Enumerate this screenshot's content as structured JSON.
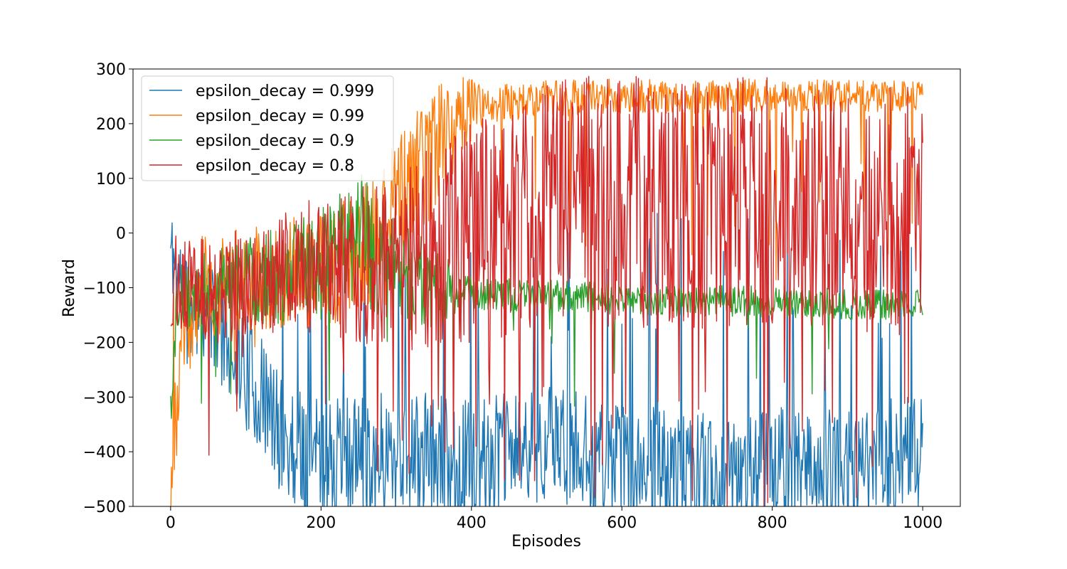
{
  "chart_data": {
    "type": "line",
    "title": "",
    "xlabel": "Episodes",
    "ylabel": "Reward",
    "xlim": [
      -50,
      1050
    ],
    "ylim": [
      -500,
      300
    ],
    "xticks": [
      0,
      200,
      400,
      600,
      800,
      1000
    ],
    "yticks": [
      -500,
      -400,
      -300,
      -200,
      -100,
      0,
      100,
      200,
      300
    ],
    "xtick_labels": [
      "0",
      "200",
      "400",
      "600",
      "800",
      "1000"
    ],
    "ytick_labels": [
      "−500",
      "−400",
      "−300",
      "−200",
      "−100",
      "0",
      "100",
      "200",
      "300"
    ],
    "grid": false,
    "legend_position": "upper-left",
    "x": {
      "start": 0,
      "end": 1000,
      "count": 1001
    },
    "series": [
      {
        "name": "epsilon_decay = 0.999",
        "color": "#1f77b4",
        "keyframes": [
          [
            0,
            -30
          ],
          [
            30,
            -150
          ],
          [
            60,
            -160
          ],
          [
            100,
            -250
          ],
          [
            150,
            -380
          ],
          [
            200,
            -420
          ],
          [
            300,
            -400
          ],
          [
            400,
            -420
          ],
          [
            500,
            -380
          ],
          [
            600,
            -420
          ],
          [
            700,
            -440
          ],
          [
            800,
            -420
          ],
          [
            900,
            -430
          ],
          [
            1000,
            -400
          ]
        ],
        "noise": [
          [
            0,
            80
          ],
          [
            100,
            110
          ],
          [
            200,
            120
          ],
          [
            500,
            110
          ],
          [
            1000,
            110
          ]
        ],
        "spike_rate": [
          [
            0,
            0.03
          ],
          [
            500,
            0.04
          ],
          [
            600,
            0.05
          ],
          [
            1000,
            0.06
          ]
        ],
        "spike_level": [
          [
            0,
            -140
          ],
          [
            300,
            -100
          ],
          [
            600,
            -60
          ],
          [
            1000,
            -120
          ]
        ],
        "seed": 11
      },
      {
        "name": "epsilon_decay = 0.99",
        "color": "#ff7f0e",
        "keyframes": [
          [
            0,
            -470
          ],
          [
            15,
            -200
          ],
          [
            40,
            -100
          ],
          [
            100,
            -80
          ],
          [
            200,
            -70
          ],
          [
            250,
            -40
          ],
          [
            300,
            50
          ],
          [
            350,
            150
          ],
          [
            400,
            230
          ],
          [
            450,
            240
          ],
          [
            500,
            245
          ],
          [
            600,
            250
          ],
          [
            700,
            250
          ],
          [
            800,
            252
          ],
          [
            900,
            250
          ],
          [
            1000,
            250
          ]
        ],
        "noise": [
          [
            0,
            90
          ],
          [
            200,
            110
          ],
          [
            350,
            120
          ],
          [
            420,
            35
          ],
          [
            1000,
            28
          ]
        ],
        "spike_rate": [
          [
            0,
            0.02
          ],
          [
            1000,
            0.02
          ]
        ],
        "spike_level": [
          [
            0,
            -160
          ],
          [
            1000,
            80
          ]
        ],
        "seed": 23
      },
      {
        "name": "epsilon_decay = 0.9",
        "color": "#2ca02c",
        "keyframes": [
          [
            0,
            -300
          ],
          [
            10,
            -120
          ],
          [
            50,
            -100
          ],
          [
            100,
            -90
          ],
          [
            200,
            -60
          ],
          [
            250,
            0
          ],
          [
            300,
            -80
          ],
          [
            350,
            -100
          ],
          [
            400,
            -110
          ],
          [
            500,
            -115
          ],
          [
            600,
            -120
          ],
          [
            700,
            -125
          ],
          [
            800,
            -125
          ],
          [
            900,
            -130
          ],
          [
            1000,
            -130
          ]
        ],
        "noise": [
          [
            0,
            60
          ],
          [
            150,
            90
          ],
          [
            250,
            120
          ],
          [
            330,
            90
          ],
          [
            400,
            30
          ],
          [
            1000,
            28
          ]
        ],
        "spike_rate": [
          [
            0,
            0.02
          ],
          [
            1000,
            0.03
          ]
        ],
        "spike_level": [
          [
            0,
            -200
          ],
          [
            1000,
            -220
          ]
        ],
        "seed": 37
      },
      {
        "name": "epsilon_decay = 0.8",
        "color": "#d62728",
        "keyframes": [
          [
            0,
            -90
          ],
          [
            50,
            -110
          ],
          [
            100,
            -90
          ],
          [
            150,
            -70
          ],
          [
            200,
            -60
          ],
          [
            300,
            -50
          ],
          [
            400,
            0
          ],
          [
            500,
            50
          ],
          [
            600,
            60
          ],
          [
            700,
            50
          ],
          [
            800,
            60
          ],
          [
            900,
            60
          ],
          [
            1000,
            40
          ]
        ],
        "noise": [
          [
            0,
            90
          ],
          [
            150,
            110
          ],
          [
            300,
            170
          ],
          [
            500,
            230
          ],
          [
            1000,
            240
          ]
        ],
        "spike_rate": [
          [
            0,
            0.02
          ],
          [
            500,
            0.04
          ],
          [
            1000,
            0.05
          ]
        ],
        "spike_level": [
          [
            0,
            -300
          ],
          [
            600,
            -380
          ],
          [
            1000,
            -400
          ]
        ],
        "seed": 53
      }
    ]
  }
}
